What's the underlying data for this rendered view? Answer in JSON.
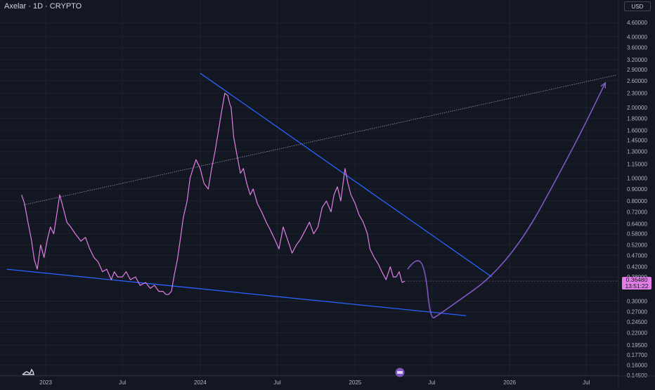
{
  "header": {
    "title": "Axelar · 1D · CRYPTO"
  },
  "price_scale": {
    "currency_label": "USD",
    "last_price": "0.36480",
    "countdown": "13:51:22"
  },
  "colors": {
    "background": "#131722",
    "grid": "#1e222d",
    "price_line": "#e07ee6",
    "trend_lines": "#2962ff",
    "projection": "#7e57c2",
    "dotted_line": "#b2b5be"
  },
  "chart_data": {
    "type": "line",
    "symbol": "Axelar · 1D · CRYPTO",
    "y_scale": "log",
    "ylim": [
      0.145,
      5.0
    ],
    "xlim": [
      "2022-09-15",
      "2026-09-15"
    ],
    "x_ticks": [
      {
        "date": "2023-01-01",
        "label": "2023"
      },
      {
        "date": "2023-07-01",
        "label": "Jul"
      },
      {
        "date": "2024-01-01",
        "label": "2024"
      },
      {
        "date": "2024-07-01",
        "label": "Jul"
      },
      {
        "date": "2025-01-01",
        "label": "2025"
      },
      {
        "date": "2025-07-01",
        "label": "Jul"
      },
      {
        "date": "2026-01-01",
        "label": "2026"
      },
      {
        "date": "2026-07-01",
        "label": "Jul"
      }
    ],
    "y_ticks": [
      "4.60000",
      "4.00000",
      "3.60000",
      "3.20000",
      "2.90000",
      "2.60000",
      "2.30000",
      "2.00000",
      "1.80000",
      "1.60000",
      "1.45000",
      "1.30000",
      "1.15000",
      "1.00000",
      "0.90000",
      "0.80000",
      "0.72000",
      "0.64000",
      "0.58000",
      "0.52000",
      "0.47000",
      "0.42000",
      "0.38000",
      "0.30000",
      "0.27000",
      "0.24500",
      "0.22000",
      "0.19500",
      "0.17700",
      "0.16000",
      "0.14500"
    ],
    "series": [
      {
        "x": [
          "2022-11-05",
          "2022-11-12",
          "2022-11-20",
          "2022-11-28",
          "2022-12-05",
          "2022-12-12",
          "2022-12-20",
          "2022-12-28",
          "2023-01-05",
          "2023-01-12",
          "2023-01-20",
          "2023-01-27",
          "2023-02-03",
          "2023-02-12",
          "2023-02-20",
          "2023-03-01",
          "2023-03-12",
          "2023-03-25",
          "2023-04-05",
          "2023-04-15",
          "2023-04-25",
          "2023-05-05",
          "2023-05-15",
          "2023-05-25",
          "2023-06-05",
          "2023-06-12",
          "2023-06-20",
          "2023-07-01",
          "2023-07-10",
          "2023-07-20",
          "2023-08-01",
          "2023-08-12",
          "2023-08-25",
          "2023-09-05",
          "2023-09-15",
          "2023-09-25",
          "2023-10-05",
          "2023-10-12",
          "2023-10-18",
          "2023-10-25",
          "2023-11-01",
          "2023-11-08",
          "2023-11-15",
          "2023-11-22",
          "2023-12-01",
          "2023-12-08",
          "2023-12-15",
          "2023-12-22",
          "2024-01-01",
          "2024-01-10",
          "2024-01-20",
          "2024-01-28",
          "2024-02-05",
          "2024-02-12",
          "2024-02-20",
          "2024-02-28",
          "2024-03-06",
          "2024-03-10",
          "2024-03-14",
          "2024-03-20",
          "2024-03-28",
          "2024-04-05",
          "2024-04-12",
          "2024-04-20",
          "2024-04-28",
          "2024-05-05",
          "2024-05-15",
          "2024-05-25",
          "2024-06-05",
          "2024-06-15",
          "2024-06-25",
          "2024-07-05",
          "2024-07-15",
          "2024-07-25",
          "2024-08-05",
          "2024-08-15",
          "2024-08-25",
          "2024-09-05",
          "2024-09-15",
          "2024-09-25",
          "2024-10-05",
          "2024-10-15",
          "2024-10-25",
          "2024-11-05",
          "2024-11-12",
          "2024-11-20",
          "2024-11-28",
          "2024-12-05",
          "2024-12-08",
          "2024-12-15",
          "2024-12-22",
          "2025-01-01",
          "2025-01-10",
          "2025-01-20",
          "2025-01-30",
          "2025-02-05",
          "2025-02-15",
          "2025-02-25",
          "2025-03-05",
          "2025-03-15",
          "2025-03-25",
          "2025-04-01",
          "2025-04-08",
          "2025-04-15",
          "2025-04-22",
          "2025-04-28"
        ],
        "y": [
          0.85,
          0.78,
          0.65,
          0.55,
          0.45,
          0.41,
          0.52,
          0.46,
          0.55,
          0.62,
          0.58,
          0.7,
          0.85,
          0.74,
          0.65,
          0.62,
          0.58,
          0.54,
          0.56,
          0.5,
          0.46,
          0.44,
          0.4,
          0.41,
          0.37,
          0.4,
          0.38,
          0.38,
          0.4,
          0.37,
          0.38,
          0.35,
          0.36,
          0.34,
          0.35,
          0.33,
          0.33,
          0.32,
          0.32,
          0.33,
          0.39,
          0.45,
          0.55,
          0.68,
          0.8,
          1.0,
          1.1,
          1.2,
          1.1,
          0.95,
          0.9,
          1.1,
          1.3,
          1.55,
          1.9,
          2.3,
          2.25,
          2.1,
          2.0,
          1.5,
          1.25,
          1.05,
          1.1,
          0.95,
          0.85,
          0.9,
          0.78,
          0.72,
          0.65,
          0.6,
          0.55,
          0.5,
          0.62,
          0.55,
          0.48,
          0.52,
          0.55,
          0.6,
          0.65,
          0.58,
          0.62,
          0.75,
          0.8,
          0.72,
          0.85,
          0.92,
          0.8,
          1.0,
          1.1,
          0.95,
          0.85,
          0.78,
          0.7,
          0.65,
          0.58,
          0.5,
          0.46,
          0.43,
          0.4,
          0.37,
          0.42,
          0.38,
          0.38,
          0.4,
          0.36,
          0.3648
        ]
      }
    ],
    "drawings": {
      "upper_trendline": [
        [
          "2024-01-01",
          2.8
        ],
        [
          "2025-11-20",
          0.38
        ]
      ],
      "lower_trendline": [
        [
          "2022-10-01",
          0.41
        ],
        [
          "2025-09-20",
          0.26
        ]
      ],
      "dotted_line": [
        [
          "2022-11-10",
          0.77
        ],
        [
          "2026-09-10",
          2.75
        ]
      ],
      "projection": [
        [
          "2025-05-05",
          0.41
        ],
        [
          "2025-05-25",
          0.46
        ],
        [
          "2025-06-15",
          0.42
        ],
        [
          "2025-06-28",
          0.25
        ],
        [
          "2025-07-15",
          0.26
        ],
        [
          "2026-01-01",
          0.43
        ],
        [
          "2026-06-01",
          1.35
        ],
        [
          "2026-08-15",
          2.55
        ]
      ],
      "projection_arrow_tip": [
        "2026-08-15",
        2.55
      ]
    }
  }
}
